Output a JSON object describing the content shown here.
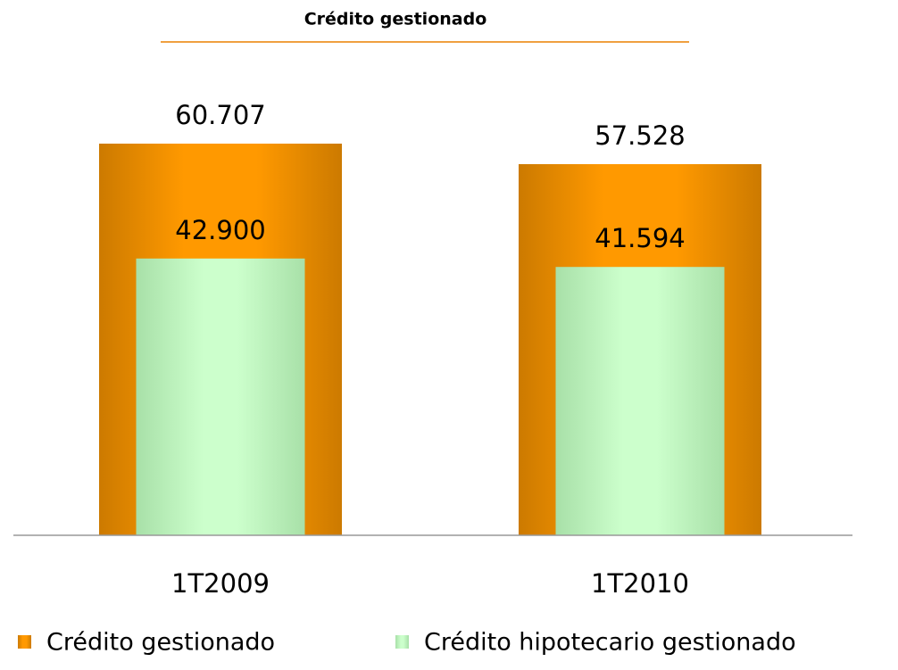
{
  "chart_data": {
    "type": "overlap-bar",
    "title": "Crédito gestionado",
    "categories": [
      "1T2009",
      "1T2010"
    ],
    "series": [
      {
        "name": "Crédito gestionado",
        "color": "#ff9900",
        "values": [
          60707,
          57528
        ],
        "value_labels": [
          "60.707",
          "57.528"
        ]
      },
      {
        "name": "Crédito hipotecario gestionado",
        "color": "#ccffcc",
        "values": [
          42900,
          41594
        ],
        "value_labels": [
          "42.900",
          "41.594"
        ]
      }
    ],
    "legend": "bottom"
  }
}
